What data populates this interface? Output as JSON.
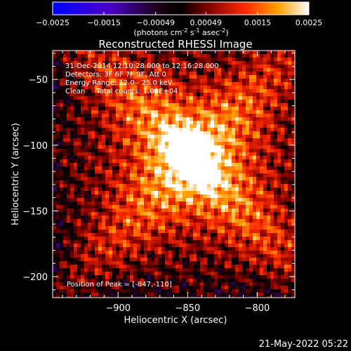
{
  "colorbar": {
    "ticks": [
      "-0.0025",
      "-0.0015",
      "-0.00049",
      "0.00049",
      "0.0015",
      "0.0025"
    ],
    "unit_label": "(photons cm",
    "unit_exp1": "-2",
    "unit_mid": " s",
    "unit_exp2": "-1",
    "unit_end": " asec",
    "unit_exp3": "-2",
    "unit_close": ")",
    "range": [
      -0.0025,
      0.0025
    ]
  },
  "chart_data": {
    "type": "heatmap",
    "title": "Reconstructed RHESSI Image",
    "xlabel": "Heliocentric X (arcsec)",
    "ylabel": "Heliocentric Y (arcsec)",
    "xlim": [
      -947,
      -773
    ],
    "ylim": [
      -216,
      -28
    ],
    "xticks": [
      -900,
      -850,
      -800
    ],
    "xtick_labels": [
      "−900",
      "−850",
      "−800"
    ],
    "yticks": [
      -50,
      -100,
      -150,
      -200
    ],
    "ytick_labels": [
      "−50",
      "−100",
      "−150",
      "−200"
    ],
    "peak": {
      "x": -847,
      "y": -110
    },
    "colormap_stops": [
      "#0000ff",
      "#6a00b0",
      "#000000",
      "#8a0000",
      "#ff2000",
      "#ff9a00",
      "#ffff80",
      "#ffffff"
    ],
    "annotations": [
      "31-Dec-2014 12:10:28.000 to 12:16:28.000",
      "Detectors: 3F 6F 7F 9F, Att 0",
      "Energy Range: 12.0 - 25.0 keV",
      "Clean     Total counts: 1.08E+04"
    ],
    "peak_label": "Position of Peak = [-847,-110]"
  },
  "timestamp": "21-May-2022 05:22"
}
